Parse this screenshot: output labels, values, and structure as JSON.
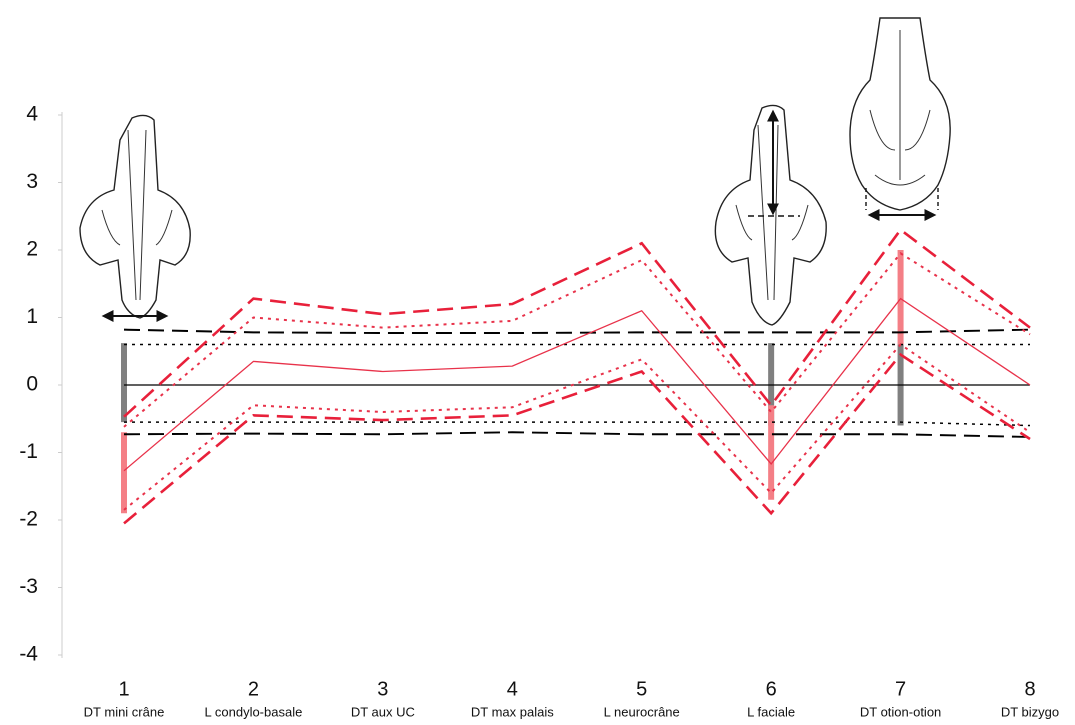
{
  "chart_data": {
    "type": "line",
    "x": [
      1,
      2,
      3,
      4,
      5,
      6,
      7,
      8
    ],
    "categories": [
      "DT mini crâne",
      "L condylo-basale",
      "DT aux UC",
      "DT max palais",
      "L neurocrâne",
      "L faciale",
      "DT otion-otion",
      "DT bizygo"
    ],
    "xlim": [
      1,
      8
    ],
    "ylim": [
      -4,
      4
    ],
    "yticks": [
      -4,
      -3,
      -2,
      -1,
      0,
      1,
      2,
      3,
      4
    ],
    "series": [
      {
        "color": "#000000",
        "dash": "solid",
        "values": [
          0,
          0,
          0,
          0,
          0,
          0,
          0,
          0
        ]
      },
      {
        "color": "#000000",
        "dash": "dashed",
        "values": [
          0.82,
          0.78,
          0.77,
          0.77,
          0.78,
          0.78,
          0.78,
          0.82
        ]
      },
      {
        "color": "#000000",
        "dash": "dashed",
        "values": [
          -0.73,
          -0.72,
          -0.73,
          -0.7,
          -0.73,
          -0.73,
          -0.73,
          -0.77
        ]
      },
      {
        "color": "#000000",
        "dash": "dotted",
        "values": [
          0.6,
          0.6,
          0.6,
          0.6,
          0.6,
          0.6,
          0.6,
          0.6
        ]
      },
      {
        "color": "#000000",
        "dash": "dotted",
        "values": [
          -0.55,
          -0.55,
          -0.55,
          -0.55,
          -0.55,
          -0.55,
          -0.55,
          -0.6
        ]
      },
      {
        "color": "#e8324a",
        "dash": "solid",
        "values": [
          -1.27,
          0.35,
          0.2,
          0.28,
          1.1,
          -1.17,
          1.28,
          0
        ]
      },
      {
        "color": "#e8203a",
        "dash": "dashed",
        "values": [
          -0.47,
          1.28,
          1.05,
          1.2,
          2.1,
          -0.3,
          2.3,
          0.85
        ]
      },
      {
        "color": "#e8203a",
        "dash": "dashed",
        "values": [
          -2.05,
          -0.45,
          -0.52,
          -0.45,
          0.2,
          -1.9,
          0.45,
          -0.8
        ]
      },
      {
        "color": "#e8324a",
        "dash": "dotted",
        "values": [
          -0.62,
          1.0,
          0.85,
          0.95,
          1.85,
          -0.4,
          1.95,
          0.75
        ]
      },
      {
        "color": "#e8324a",
        "dash": "dotted",
        "values": [
          -1.85,
          -0.3,
          -0.4,
          -0.33,
          0.38,
          -1.6,
          0.6,
          -0.7
        ]
      }
    ],
    "bars": [
      {
        "x": 1,
        "color": "#808080",
        "values": [
          0.62,
          -0.55
        ]
      },
      {
        "x": 1,
        "color": "#f47f86",
        "values": [
          -0.7,
          -1.9
        ]
      },
      {
        "x": 6,
        "color": "#808080",
        "values": [
          0.62,
          -0.6
        ]
      },
      {
        "x": 6,
        "color": "#f47f86",
        "values": [
          -0.3,
          -1.7
        ]
      },
      {
        "x": 7,
        "color": "#f47f86",
        "values": [
          2.0,
          0.6
        ]
      },
      {
        "x": 7,
        "color": "#808080",
        "values": [
          0.6,
          -0.6
        ]
      }
    ]
  }
}
